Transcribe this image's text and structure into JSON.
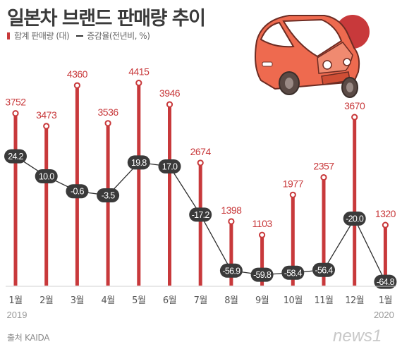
{
  "title": "일본차 브랜드 판매량 추이",
  "legend": {
    "sales": "합계 판매량 (대)",
    "growth": "증감율(전년비, %)"
  },
  "source": "출처 KAIDA",
  "logo_text": "news1",
  "colors": {
    "bar": "#c8393b",
    "bar_label": "#c8393b",
    "growth_marker": "#3a3a3a",
    "axis": "#d0d0d0",
    "car_body": "#ee6a4f",
    "accent_circle": "#c8393b"
  },
  "icons": [
    "car-illustration",
    "news1-logo"
  ],
  "chart_data": {
    "type": "bar",
    "title": "일본차 브랜드 판매량 추이",
    "categories": [
      "1월",
      "2월",
      "3월",
      "4월",
      "5월",
      "6월",
      "7월",
      "8월",
      "9월",
      "10월",
      "11월",
      "12월",
      "1월"
    ],
    "year_labels": [
      "2019",
      "2020"
    ],
    "series": [
      {
        "name": "합계 판매량 (대)",
        "type": "bar",
        "values": [
          3752,
          3473,
          4360,
          3536,
          4415,
          3946,
          2674,
          1398,
          1103,
          1977,
          2357,
          3670,
          1320
        ]
      },
      {
        "name": "증감율(전년비, %)",
        "type": "line",
        "values": [
          24.2,
          10.0,
          -0.6,
          -3.5,
          19.8,
          17.0,
          -17.2,
          -56.9,
          -59.8,
          -58.4,
          -56.4,
          -20.0,
          -64.8
        ]
      }
    ],
    "grid": false,
    "legend_position": "top-left"
  }
}
